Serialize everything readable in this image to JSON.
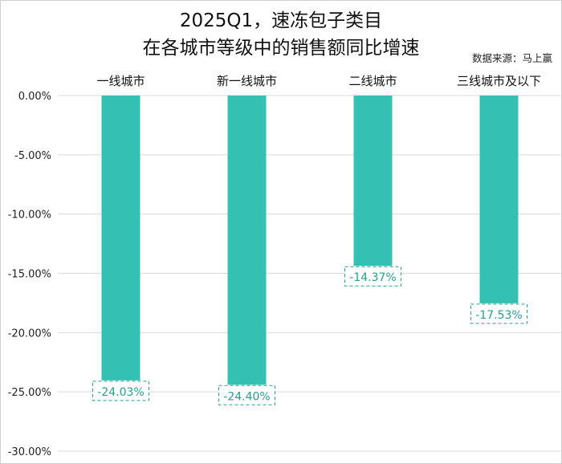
{
  "chart_data": {
    "type": "bar",
    "title_line1": "2025Q1，速冻包子类目",
    "title_line2": "在各城市等级中的销售额同比增速",
    "source": "数据来源：马上赢",
    "categories": [
      "一线城市",
      "新一线城市",
      "二线城市",
      "三线城市及以下"
    ],
    "values": [
      -24.03,
      -24.4,
      -14.37,
      -17.53
    ],
    "data_labels": [
      "-24.03%",
      "-24.40%",
      "-14.37%",
      "-17.53%"
    ],
    "y_ticks": [
      0,
      -5,
      -10,
      -15,
      -20,
      -25,
      -30
    ],
    "y_tick_labels": [
      "0.00%",
      "-5.00%",
      "-10.00%",
      "-15.00%",
      "-20.00%",
      "-25.00%",
      "-30.00%"
    ],
    "ylim": [
      -30,
      0
    ],
    "grid": true,
    "x_axis_position": "top",
    "colors": {
      "bar": "#34c0b3",
      "label_text": "#2a9d92",
      "label_border": "#2a9d92",
      "grid": "#d9d9d9"
    }
  }
}
